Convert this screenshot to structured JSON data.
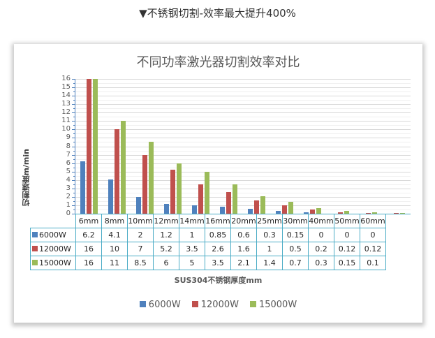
{
  "caption": "▼不锈钢切割-效率最大提升400%",
  "chart": {
    "title": "不同功率激光器切割效率对比",
    "ylabel": "切割速度m/min",
    "xlabel": "SUS304不锈钢厚度mm",
    "y_ticks": [
      "16",
      "15",
      "14",
      "13",
      "12",
      "11",
      "10",
      "9",
      "8",
      "7",
      "6",
      "5",
      "4",
      "3",
      "2",
      "1",
      "0"
    ],
    "colors": {
      "6000W": "#4f81bd",
      "12000W": "#c0504d",
      "15000W": "#9bbb59"
    },
    "table": {
      "header": [
        "6mm",
        "8mm",
        "10mm",
        "12mm",
        "14mm",
        "16mm",
        "20mm",
        "25mm",
        "30mm",
        "40mm",
        "50mm",
        "60mm"
      ],
      "rows": [
        {
          "label": "6000W",
          "values": [
            "6.2",
            "4.1",
            "2",
            "1.2",
            "1",
            "0.85",
            "0.6",
            "0.3",
            "0.15",
            "0",
            "0",
            "0"
          ]
        },
        {
          "label": "12000W",
          "values": [
            "16",
            "10",
            "7",
            "5.2",
            "3.5",
            "2.6",
            "1.6",
            "1",
            "0.5",
            "0.2",
            "0.12",
            "0.12"
          ]
        },
        {
          "label": "15000W",
          "values": [
            "16",
            "11",
            "8.5",
            "6",
            "5",
            "3.5",
            "2.1",
            "1.4",
            "0.7",
            "0.3",
            "0.15",
            "0.1"
          ]
        }
      ]
    },
    "legend": [
      "6000W",
      "12000W",
      "15000W"
    ]
  },
  "chart_data": {
    "type": "bar",
    "title": "不同功率激光器切割效率对比",
    "xlabel": "SUS304不锈钢厚度mm",
    "ylabel": "切割速度m/min",
    "ylim": [
      0,
      16
    ],
    "grid": true,
    "legend_position": "bottom",
    "categories": [
      "6mm",
      "8mm",
      "10mm",
      "12mm",
      "14mm",
      "16mm",
      "20mm",
      "25mm",
      "30mm",
      "40mm",
      "50mm",
      "60mm"
    ],
    "series": [
      {
        "name": "6000W",
        "color": "#4f81bd",
        "values": [
          6.2,
          4.1,
          2,
          1.2,
          1,
          0.85,
          0.6,
          0.3,
          0.15,
          0,
          0,
          0
        ]
      },
      {
        "name": "12000W",
        "color": "#c0504d",
        "values": [
          16,
          10,
          7,
          5.2,
          3.5,
          2.6,
          1.6,
          1,
          0.5,
          0.2,
          0.12,
          0.12
        ]
      },
      {
        "name": "15000W",
        "color": "#9bbb59",
        "values": [
          16,
          11,
          8.5,
          6,
          5,
          3.5,
          2.1,
          1.4,
          0.7,
          0.3,
          0.15,
          0.1
        ]
      }
    ]
  }
}
